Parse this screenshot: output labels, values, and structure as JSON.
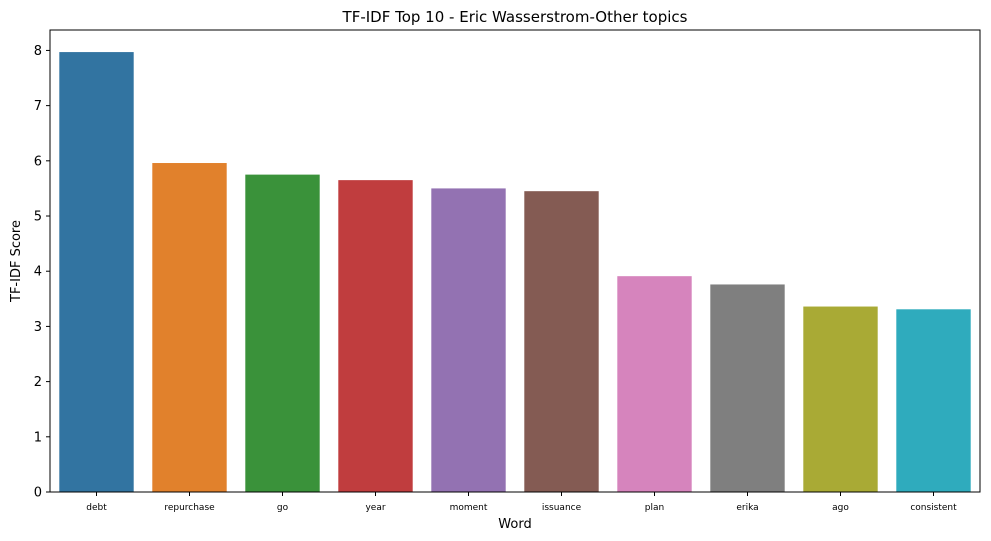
{
  "chart_data": {
    "type": "bar",
    "title": "TF-IDF Top 10 - Eric Wasserstrom-Other topics",
    "xlabel": "Word",
    "ylabel": "TF-IDF Score",
    "categories": [
      "debt",
      "repurchase",
      "go",
      "year",
      "moment",
      "issuance",
      "plan",
      "erika",
      "ago",
      "consistent"
    ],
    "values": [
      7.97,
      5.96,
      5.75,
      5.65,
      5.5,
      5.45,
      3.91,
      3.76,
      3.36,
      3.31
    ],
    "colors": [
      "#3274a1",
      "#e1812c",
      "#3a923a",
      "#c03d3e",
      "#9372b2",
      "#845b53",
      "#d684bd",
      "#7f7f7f",
      "#a9aa35",
      "#2fabbd"
    ],
    "yticks": [
      0,
      1,
      2,
      3,
      4,
      5,
      6,
      7,
      8
    ],
    "ylim": [
      0,
      8.37
    ],
    "grid": false,
    "legend": "none"
  }
}
